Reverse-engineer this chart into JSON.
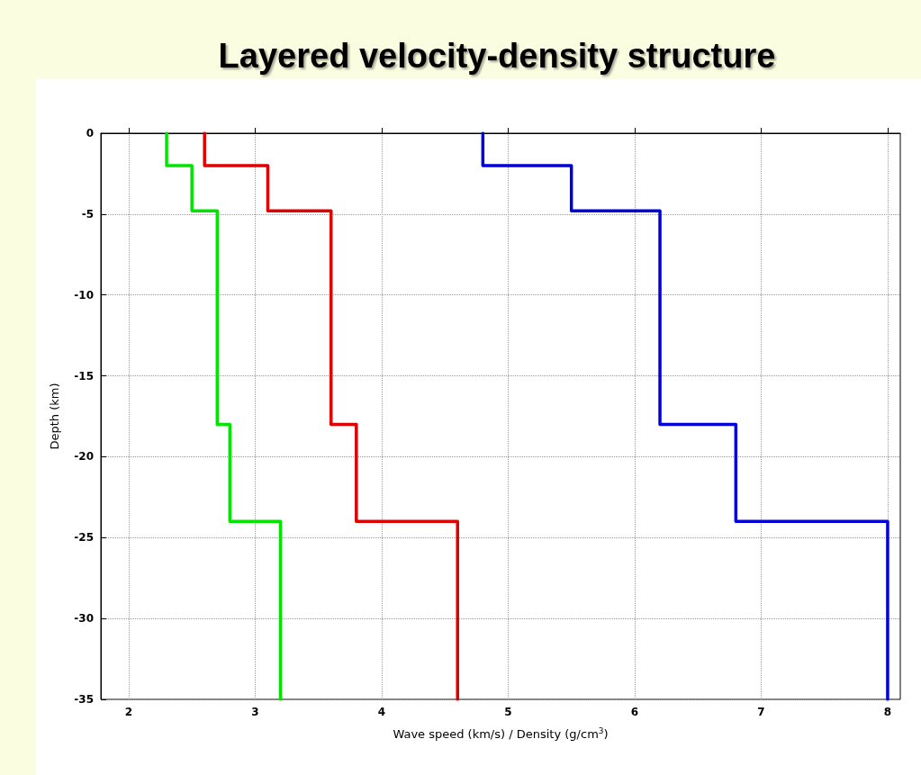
{
  "chart_data": {
    "type": "line",
    "title": "Layered velocity-density structure",
    "xlabel": "Wave speed (km/s) / Density (g/cm$^{3}$)",
    "ylabel": "Depth (km)",
    "xlim": [
      1.78,
      8.1
    ],
    "xticks": [
      2,
      3,
      4,
      5,
      6,
      7,
      8
    ],
    "ylim": [
      -35,
      0
    ],
    "yticks": [
      0,
      -5,
      -10,
      -15,
      -20,
      -25,
      -30,
      -35
    ],
    "grid": true,
    "line_style": "solid",
    "series": [
      {
        "color": "#00e400",
        "x": [
          2.3,
          2.3,
          2.5,
          2.5,
          2.7,
          2.7,
          2.8,
          2.8,
          3.2,
          3.2
        ],
        "values": [
          0,
          -2,
          -2,
          -4.8,
          -4.8,
          -18,
          -18,
          -24,
          -24,
          -35
        ]
      },
      {
        "color": "#e00000",
        "x": [
          2.6,
          2.6,
          3.1,
          3.1,
          3.6,
          3.6,
          3.8,
          3.8,
          4.6,
          4.6
        ],
        "values": [
          0,
          -2,
          -2,
          -4.8,
          -4.8,
          -18,
          -18,
          -24,
          -24,
          -35
        ]
      },
      {
        "color": "#0000dd",
        "x": [
          4.8,
          4.8,
          5.5,
          5.5,
          6.2,
          6.2,
          6.8,
          6.8,
          8,
          8
        ],
        "values": [
          0,
          -2,
          -2,
          -4.8,
          -4.8,
          -18,
          -18,
          -24,
          -24,
          -35
        ]
      }
    ]
  }
}
